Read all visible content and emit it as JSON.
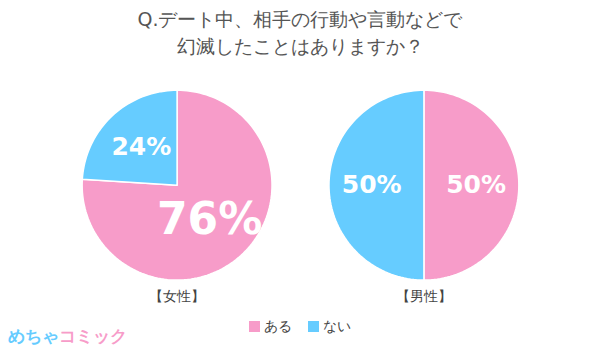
{
  "title": "Q.デート中、相手の行動や言動などで\n幻滅したことはありますか？",
  "source": "めちゃコミック",
  "legend": "bottom",
  "chart_data": [
    {
      "type": "pie",
      "title": "【女性】",
      "categories": [
        "ある",
        "ない"
      ],
      "values": [
        76,
        24
      ],
      "value_labels": [
        "76%",
        "24%"
      ],
      "colors": [
        "#f79cc9",
        "#66ccff"
      ],
      "data_labels": true
    },
    {
      "type": "pie",
      "title": "【男性】",
      "categories": [
        "ある",
        "ない"
      ],
      "values": [
        50,
        50
      ],
      "value_labels": [
        "50%",
        "50%"
      ],
      "colors": [
        "#f79cc9",
        "#66ccff"
      ],
      "data_labels": true
    }
  ]
}
